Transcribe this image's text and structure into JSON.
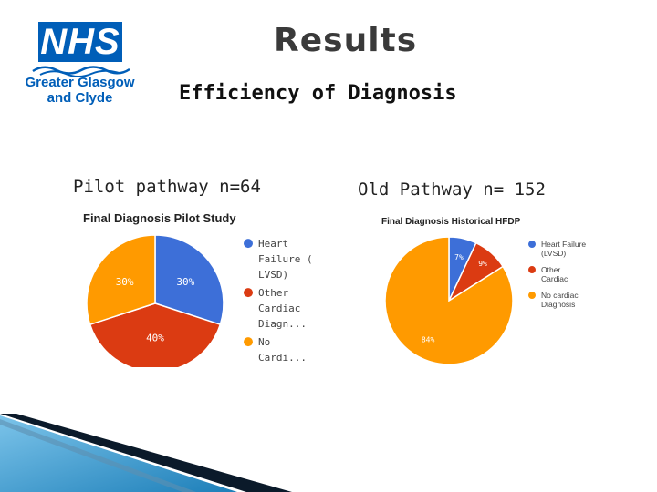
{
  "header": {
    "logo_main": "NHS",
    "logo_line1": "Greater Glasgow",
    "logo_line2": "and Clyde",
    "title": "Results",
    "subtitle": "Efficiency of Diagnosis"
  },
  "captions": {
    "left": "Pilot pathway n=64",
    "right": "Old Pathway n= 152"
  },
  "colors": {
    "blue": "#3d6fd8",
    "red": "#db3b12",
    "orange": "#ff9a00",
    "nhs_blue": "#005eb8"
  },
  "chart_data": [
    {
      "type": "pie",
      "title": "Final Diagnosis Pilot Study",
      "categories": [
        "Heart Failure ( LVSD)",
        "Other Cardiac Diagn...",
        "No Cardi..."
      ],
      "values": [
        30,
        40,
        30
      ],
      "labels": [
        "30%",
        "40%",
        "30%"
      ],
      "legend_position": "right",
      "legend_lines": [
        [
          "Heart",
          "Failure (",
          "LVSD)"
        ],
        [
          "Other",
          "Cardiac",
          "Diagn..."
        ],
        [
          "No",
          "Cardi..."
        ]
      ]
    },
    {
      "type": "pie",
      "title": "Final Diagnosis Historical HFDP",
      "categories": [
        "Heart Failure (LVSD)",
        "Other Cardiac",
        "No cardiac Diagnosis"
      ],
      "values": [
        7,
        9,
        84
      ],
      "labels": [
        "7%",
        "9%",
        "84%"
      ],
      "legend_position": "right",
      "legend_lines": [
        [
          "Heart Failure",
          "(LVSD)"
        ],
        [
          "Other",
          "Cardiac"
        ],
        [
          "No cardiac",
          "Diagnosis"
        ]
      ]
    }
  ]
}
